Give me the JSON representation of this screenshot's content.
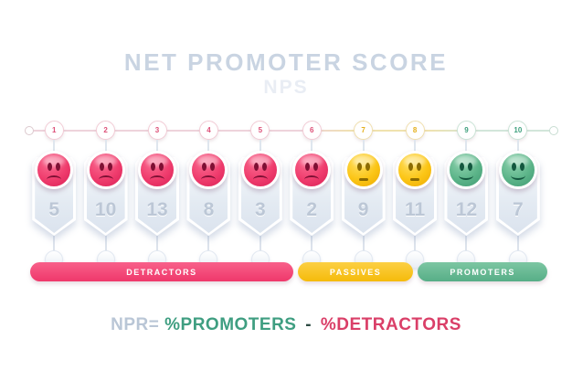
{
  "header": {
    "title": "NET PROMOTER SCORE",
    "subtitle": "NPS"
  },
  "scores": [
    {
      "score": "1",
      "value": "5",
      "group": "detractor"
    },
    {
      "score": "2",
      "value": "10",
      "group": "detractor"
    },
    {
      "score": "3",
      "value": "13",
      "group": "detractor"
    },
    {
      "score": "4",
      "value": "8",
      "group": "detractor"
    },
    {
      "score": "5",
      "value": "3",
      "group": "detractor"
    },
    {
      "score": "6",
      "value": "2",
      "group": "detractor"
    },
    {
      "score": "7",
      "value": "9",
      "group": "passive"
    },
    {
      "score": "8",
      "value": "11",
      "group": "passive"
    },
    {
      "score": "9",
      "value": "12",
      "group": "promoter"
    },
    {
      "score": "10",
      "value": "7",
      "group": "promoter"
    }
  ],
  "segments": [
    {
      "label": "DETRACTORS",
      "color": "#ef386b",
      "color_light": "#f8608a",
      "span": 6
    },
    {
      "label": "PASSIVES",
      "color": "#f5bb0a",
      "color_light": "#fcd044",
      "span": 2
    },
    {
      "label": "PROMOTERS",
      "color": "#57ae87",
      "color_light": "#7cc6a2",
      "span": 2
    }
  ],
  "formula": {
    "prefix": "NPR=",
    "promoters": "%PROMOTERS",
    "minus": "-",
    "detractors": "%DETRACTORS"
  },
  "colors": {
    "title": "#c9d4e2",
    "detractor": "#ef3c6d",
    "passive": "#fbc515",
    "promoter": "#4aa67e",
    "formula_promoters": "#3f9e81",
    "formula_detractors": "#da3f68"
  },
  "chart_data": {
    "type": "table",
    "title": "NET PROMOTER SCORE",
    "categories": [
      1,
      2,
      3,
      4,
      5,
      6,
      7,
      8,
      9,
      10
    ],
    "values": [
      5,
      10,
      13,
      8,
      3,
      2,
      9,
      11,
      12,
      7
    ],
    "groups": [
      "detractor",
      "detractor",
      "detractor",
      "detractor",
      "detractor",
      "detractor",
      "passive",
      "passive",
      "promoter",
      "promoter"
    ],
    "legend": [
      "DETRACTORS",
      "PASSIVES",
      "PROMOTERS"
    ]
  }
}
